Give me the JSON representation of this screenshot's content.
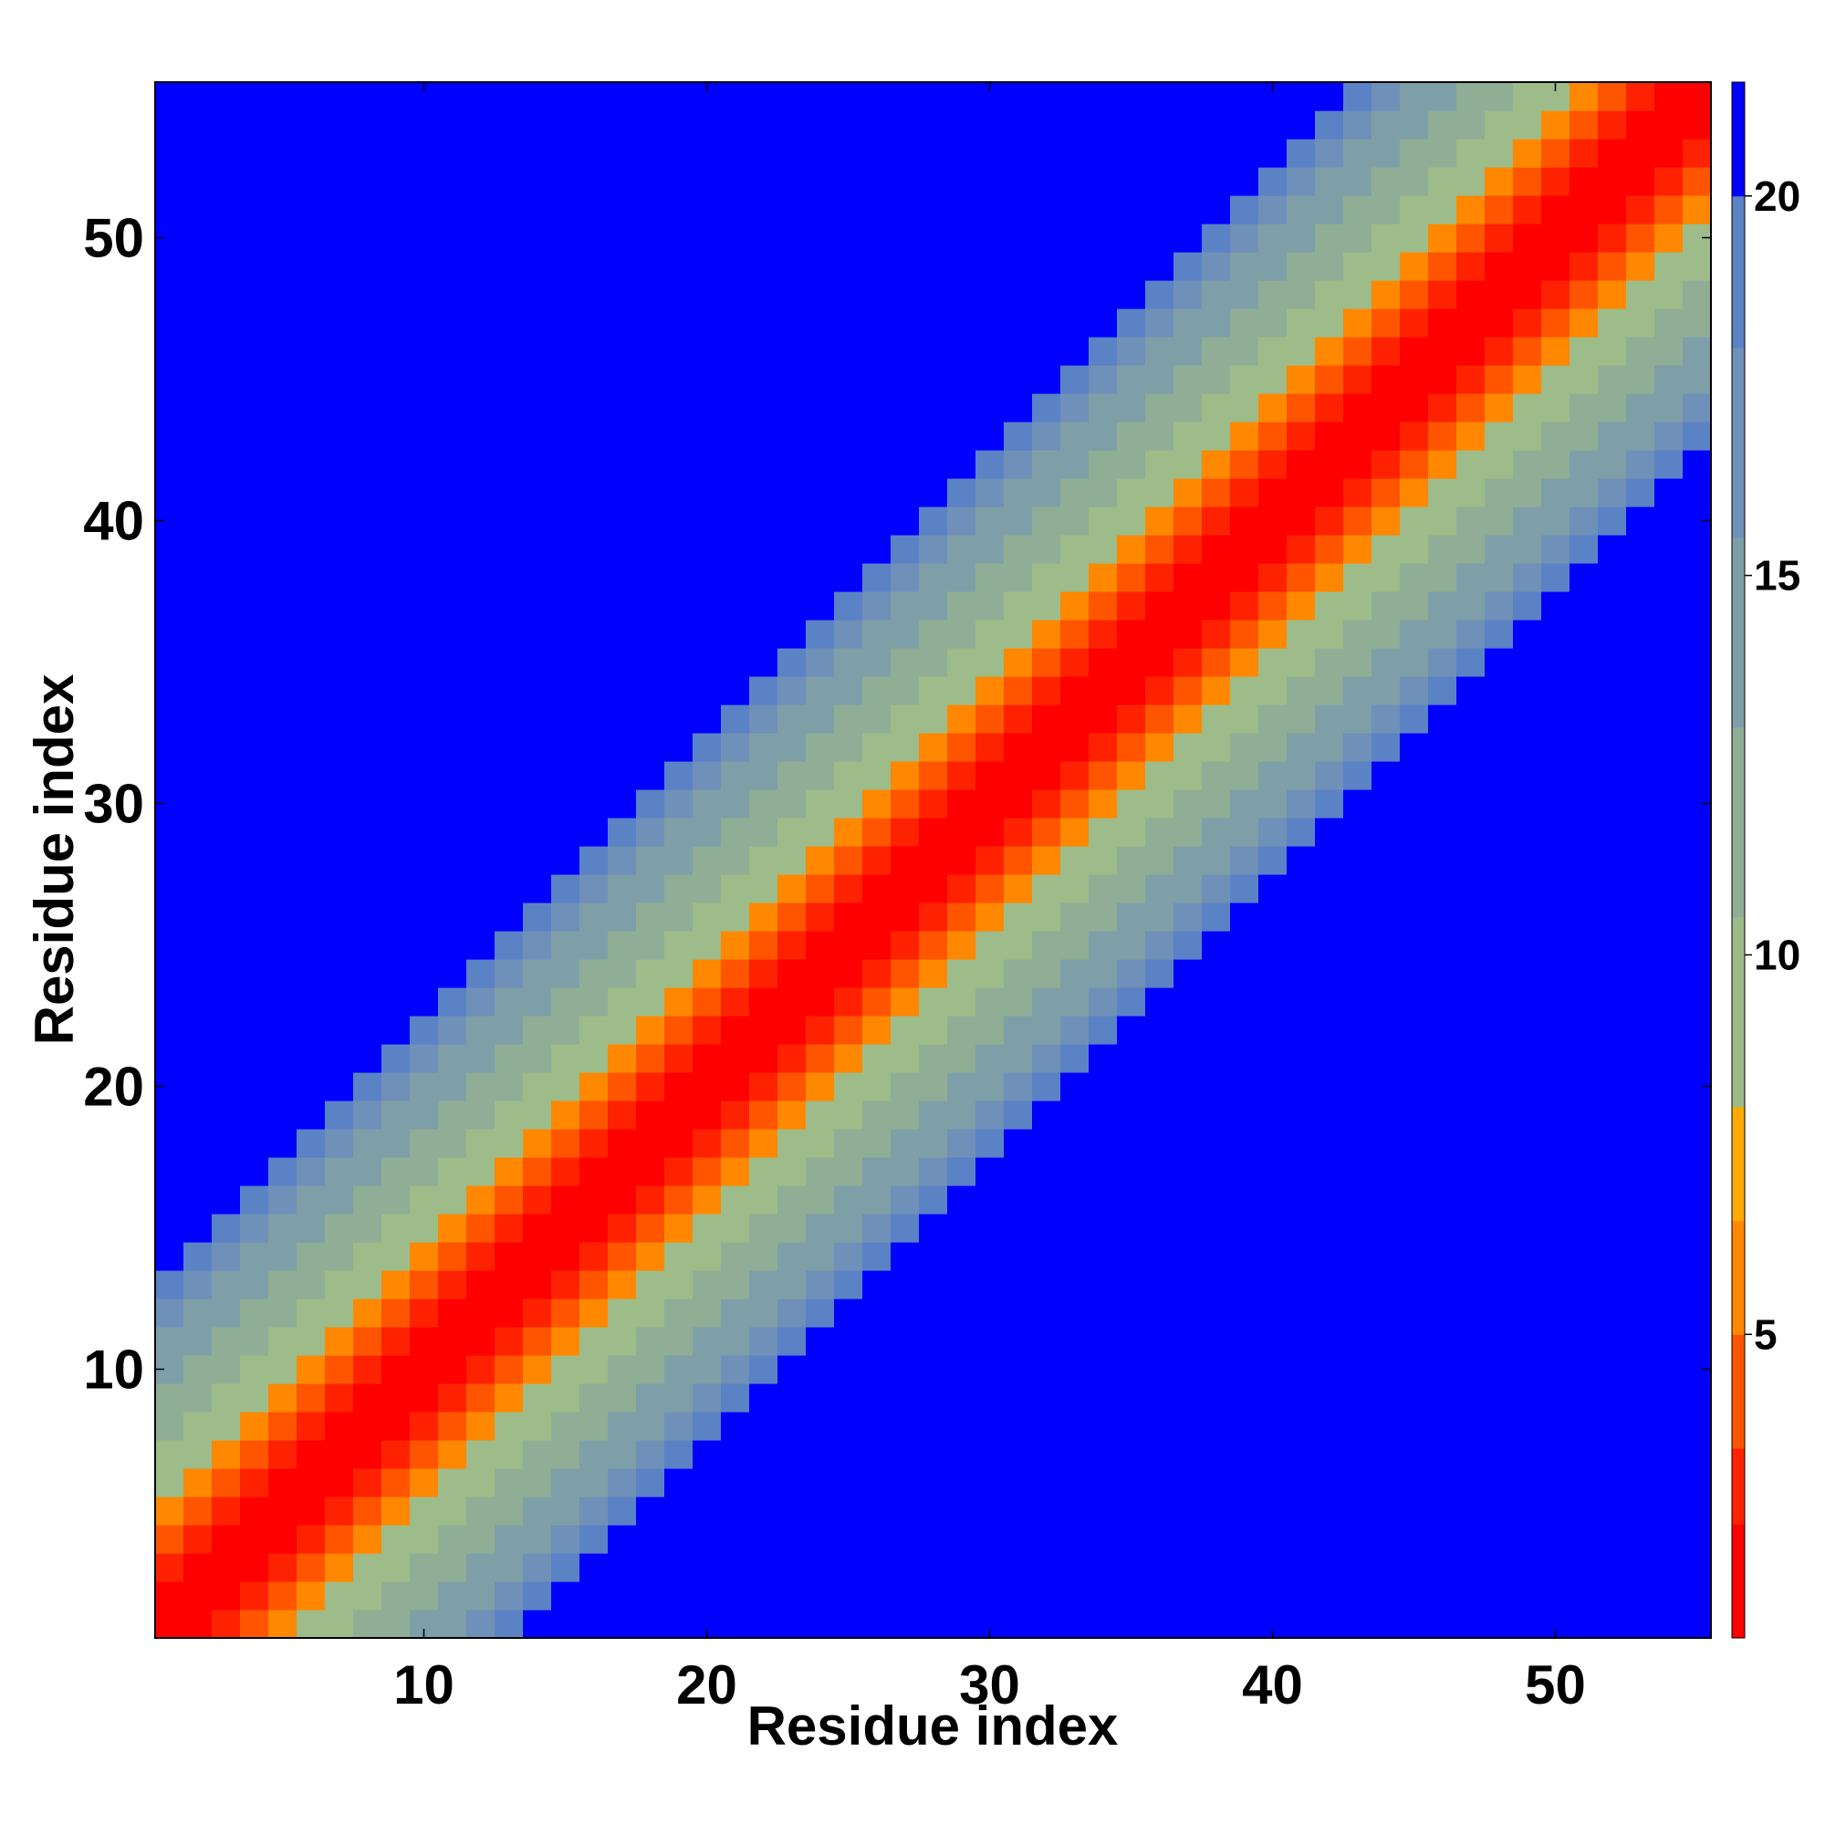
{
  "chart_data": {
    "type": "heatmap",
    "title": "",
    "xlabel": "Residue index",
    "ylabel": "Residue index",
    "n": 55,
    "x_range": [
      1,
      55
    ],
    "y_range": [
      1,
      55
    ],
    "x_ticks": [
      10,
      20,
      30,
      40,
      50
    ],
    "y_ticks": [
      10,
      20,
      30,
      40,
      50
    ],
    "description_of_values": "symmetric distance matrix; value for residue pair (i, j) shown by color",
    "diagonal_band_profile": [
      {
        "abs_offset": 0,
        "value": 1.5
      },
      {
        "abs_offset": 1,
        "value": 2.0
      },
      {
        "abs_offset": 2,
        "value": 3.5
      },
      {
        "abs_offset": 3,
        "value": 5.0
      },
      {
        "abs_offset": 4,
        "value": 6.5
      },
      {
        "abs_offset": 5,
        "value": 9.0
      },
      {
        "abs_offset": 6,
        "value": 10.0
      },
      {
        "abs_offset": 7,
        "value": 11.0
      },
      {
        "abs_offset": 8,
        "value": 12.5
      },
      {
        "abs_offset": 9,
        "value": 14.0
      },
      {
        "abs_offset": 10,
        "value": 15.5
      },
      {
        "abs_offset": 11,
        "value": 17.0
      },
      {
        "abs_offset": 12,
        "value": 19.0
      },
      {
        "abs_offset": 13,
        "value": 21.0
      }
    ],
    "cutoff_value": 21,
    "colorbar": {
      "ticks": [
        5,
        10,
        15,
        20
      ],
      "min": 1,
      "max": 21.5,
      "levels": [
        {
          "upper": 2.5,
          "color": "#ff0000"
        },
        {
          "upper": 3.5,
          "color": "#ff2200"
        },
        {
          "upper": 5.0,
          "color": "#ff5500"
        },
        {
          "upper": 6.5,
          "color": "#ff8800"
        },
        {
          "upper": 8.0,
          "color": "#ffaa00"
        },
        {
          "upper": 10.5,
          "color": "#9dbc8a"
        },
        {
          "upper": 13.0,
          "color": "#8fae95"
        },
        {
          "upper": 15.5,
          "color": "#7f9fa8"
        },
        {
          "upper": 18.0,
          "color": "#6f90b8"
        },
        {
          "upper": 20.0,
          "color": "#5b82c4"
        },
        {
          "upper": 21.5,
          "color": "#0000ff"
        }
      ]
    }
  }
}
